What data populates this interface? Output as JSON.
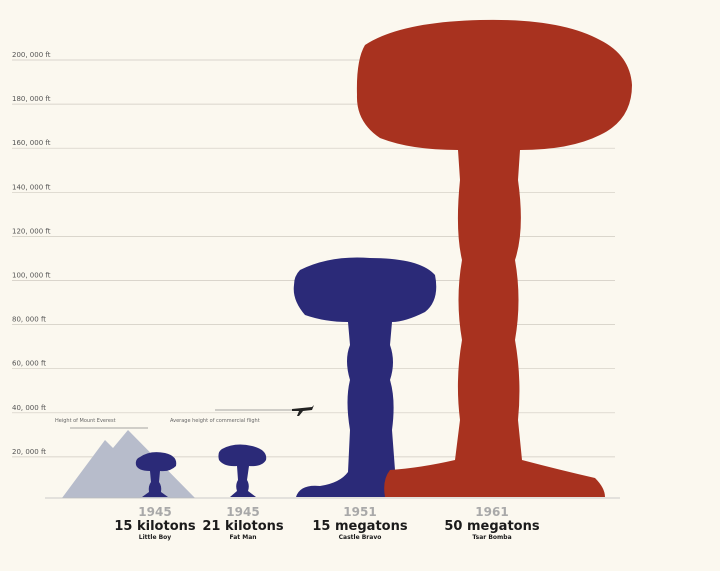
{
  "chart_data": {
    "type": "bar",
    "ylabel_unit": "ft",
    "ylim": [
      0,
      200000
    ],
    "yticks": [
      "20, 000 ft",
      "40, 000 ft",
      "60, 000 ft",
      "80, 000 ft",
      "100, 000 ft",
      "120, 000 ft",
      "140, 000 ft",
      "160, 000 ft",
      "180, 000 ft",
      "200, 000 ft"
    ],
    "grid": true,
    "colors": {
      "background": "#fbf8ef",
      "us": "#2b2a78",
      "ussr": "#a8321f",
      "mountain": "#b7bccb",
      "grid": "#cfcac0"
    },
    "annotations": [
      {
        "text": "Height of Mount Everest",
        "value": 29000
      },
      {
        "text": "Average height of commercial flight",
        "value": 38000,
        "icon": "airplane-icon"
      }
    ],
    "categories": [
      {
        "year": "1945",
        "yield": "15 kilotons",
        "name": "Little Boy",
        "height_ft": 20000,
        "color": "us"
      },
      {
        "year": "1945",
        "yield": "21 kilotons",
        "name": "Fat Man",
        "height_ft": 23000,
        "color": "us"
      },
      {
        "year": "1951",
        "yield": "15 megatons",
        "name": "Castle Bravo",
        "height_ft": 110000,
        "color": "us"
      },
      {
        "year": "1961",
        "yield": "50 megatons",
        "name": "Tsar Bomba",
        "height_ft": 217000,
        "color": "ussr"
      }
    ]
  }
}
